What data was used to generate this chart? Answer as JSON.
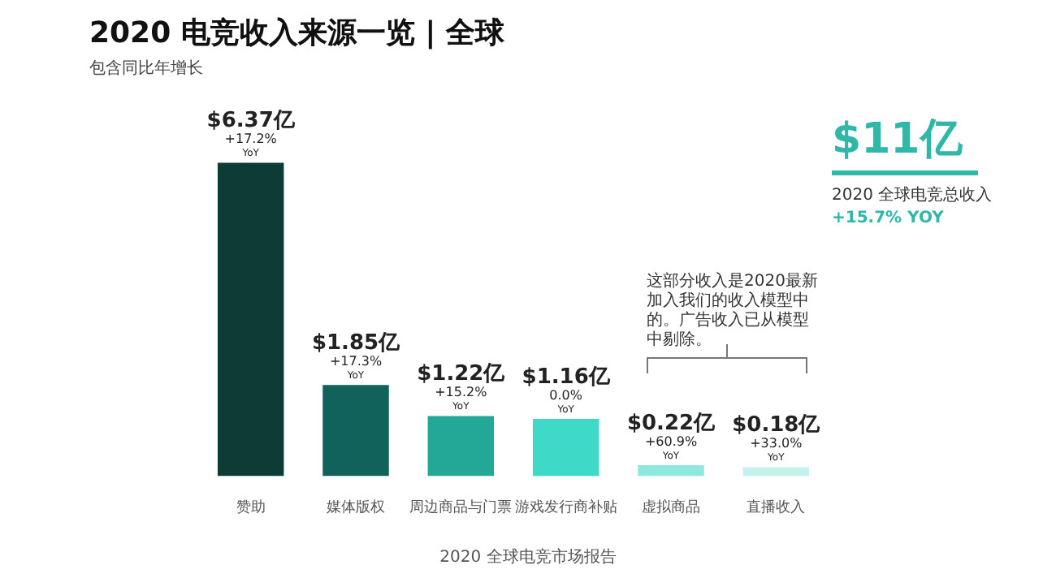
{
  "chart_data": {
    "type": "bar",
    "title": "2020 电竞收入来源一览 | 全球",
    "subtitle": "包含同比年增长",
    "categories": [
      "赞助",
      "媒体版权",
      "周边商品与门票",
      "游戏发行商补贴",
      "虚拟商品",
      "直播收入"
    ],
    "values": [
      6.37,
      1.85,
      1.22,
      1.16,
      0.22,
      0.18
    ],
    "colors": [
      "#0d3b36",
      "#11625a",
      "#23a897",
      "#3fd9c8",
      "#8ee8de",
      "#c3f2ec"
    ],
    "value_labels": [
      "$6.37亿\n+17.2%\nYoY",
      "$1.85亿\n+17.3%\nYoY",
      "$1.22亿\n+15.2%\nYoY",
      "$1.16亿\n0.0%\nYoY",
      "$0.22亿\n+60.9%\nYoY",
      "$0.18亿\n+33.0%\nYoY"
    ],
    "tick_labels": "x",
    "grid": false,
    "legend": false,
    "annotations": [
      "$11亿",
      "2020 全球电竞总收入",
      "+15.7% YOY",
      "这部分收入是2020最新加入我们的收入模型中的。广告收入已从模型中剔除。",
      "2020 全球电竞市场报告"
    ]
  }
}
